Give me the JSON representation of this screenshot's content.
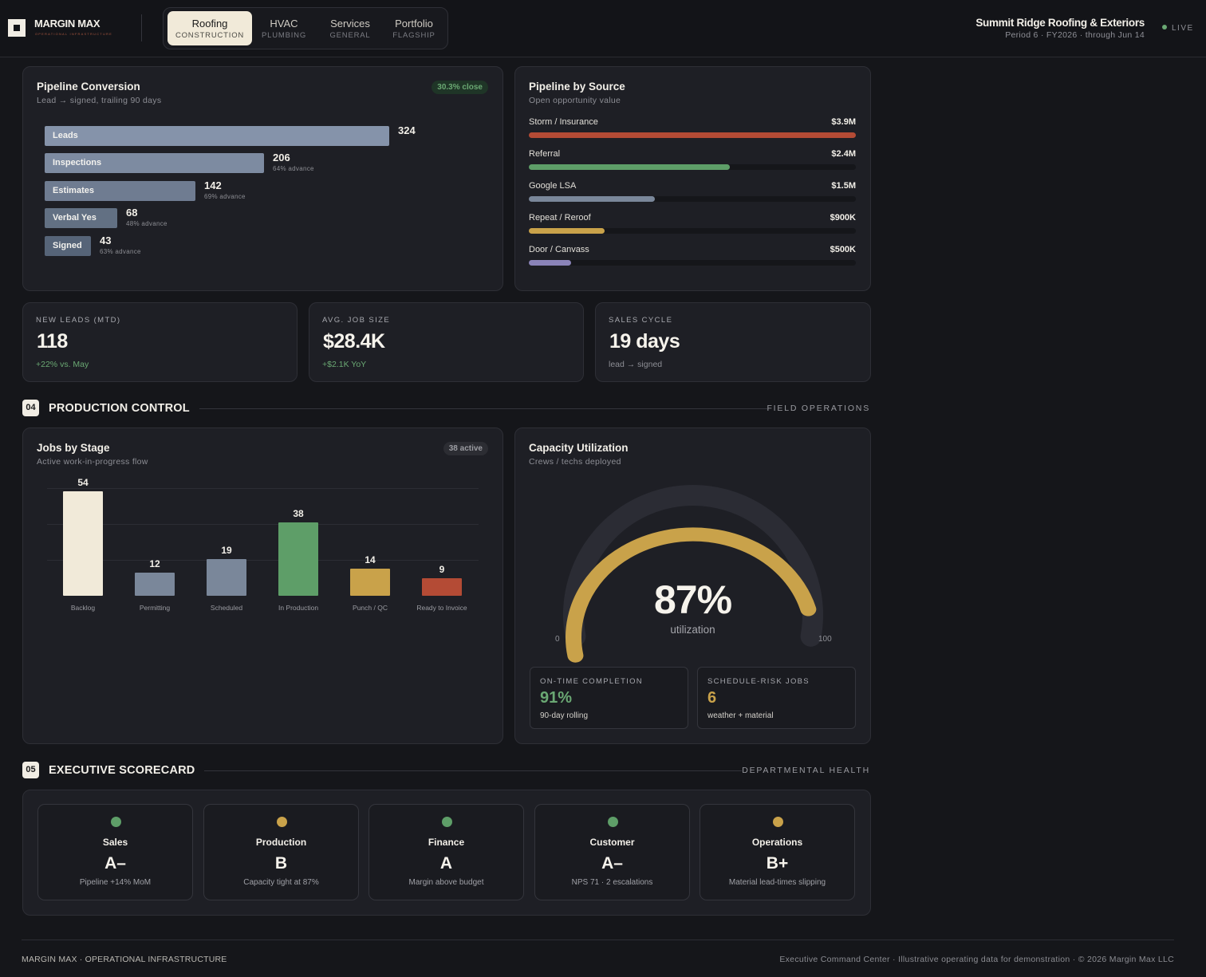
{
  "brand": {
    "name": "MARGIN MAX",
    "tagline": "OPERATIONAL INFRASTRUCTURE"
  },
  "tabs": [
    {
      "label": "Roofing",
      "sub": "CONSTRUCTION",
      "active": true
    },
    {
      "label": "HVAC",
      "sub": "PLUMBING",
      "active": false
    },
    {
      "label": "Services",
      "sub": "GENERAL",
      "active": false
    },
    {
      "label": "Portfolio",
      "sub": "FLAGSHIP",
      "active": false
    }
  ],
  "company": {
    "name": "Summit Ridge Roofing & Exteriors",
    "period": "Period 6 · FY2026 · through Jun 14"
  },
  "live_label": "LIVE",
  "pipeline_conversion": {
    "title": "Pipeline Conversion",
    "subtitle": "Lead → signed, trailing 90 days",
    "badge": "30.3% close",
    "stages": [
      {
        "label": "Leads",
        "value": "324",
        "advance": "",
        "count": 324
      },
      {
        "label": "Inspections",
        "value": "206",
        "advance": "64% advance",
        "count": 206
      },
      {
        "label": "Estimates",
        "value": "142",
        "advance": "69% advance",
        "count": 142
      },
      {
        "label": "Verbal Yes",
        "value": "68",
        "advance": "48% advance",
        "count": 68
      },
      {
        "label": "Signed",
        "value": "43",
        "advance": "63% advance",
        "count": 43
      }
    ]
  },
  "pipeline_source": {
    "title": "Pipeline by Source",
    "subtitle": "Open opportunity value",
    "sources": [
      {
        "label": "Storm / Insurance",
        "value": "$3.9M",
        "amount": 3.9,
        "color": "#b44b35"
      },
      {
        "label": "Referral",
        "value": "$2.4M",
        "amount": 2.4,
        "color": "#5e9e68"
      },
      {
        "label": "Google LSA",
        "value": "$1.5M",
        "amount": 1.5,
        "color": "#7a879a"
      },
      {
        "label": "Repeat / Reroof",
        "value": "$900K",
        "amount": 0.9,
        "color": "#c9a24a"
      },
      {
        "label": "Door / Canvass",
        "value": "$500K",
        "amount": 0.5,
        "color": "#8a83b8"
      }
    ]
  },
  "kpis": [
    {
      "label": "NEW LEADS (MTD)",
      "value": "118",
      "note": "+22% vs. May",
      "positive": true
    },
    {
      "label": "AVG. JOB SIZE",
      "value": "$28.4K",
      "note": "+$2.1K YoY",
      "positive": true
    },
    {
      "label": "SALES CYCLE",
      "value": "19 days",
      "note": "lead → signed",
      "positive": false
    }
  ],
  "section_production": {
    "num": "04",
    "title": "PRODUCTION CONTROL",
    "right": "FIELD OPERATIONS"
  },
  "jobs_by_stage": {
    "title": "Jobs by Stage",
    "subtitle": "Active work-in-progress flow",
    "badge": "38 active"
  },
  "chart_data": {
    "type": "bar",
    "categories": [
      "Backlog",
      "Permitting",
      "Scheduled",
      "In Production",
      "Punch / QC",
      "Ready to Invoice"
    ],
    "values": [
      54,
      12,
      19,
      38,
      14,
      9
    ],
    "value_labels": [
      "54",
      "12",
      "19",
      "38",
      "14",
      "9"
    ],
    "colors": [
      "#f1ead9",
      "#7a879a",
      "#7a879a",
      "#5e9e68",
      "#c9a24a",
      "#b44b35"
    ],
    "ylim": [
      0,
      60
    ],
    "grid": true
  },
  "capacity": {
    "title": "Capacity Utilization",
    "subtitle": "Crews / techs deployed",
    "value": 87,
    "display": "87%",
    "label": "utilization",
    "min_label": "0",
    "max_label": "100",
    "accent": "#c9a24a",
    "metrics": [
      {
        "label": "ON-TIME COMPLETION",
        "value": "91%",
        "note": "90-day rolling",
        "color": "#6aa873"
      },
      {
        "label": "SCHEDULE-RISK JOBS",
        "value": "6",
        "note": "weather + material",
        "color": "#c9a24a"
      }
    ]
  },
  "section_scorecard": {
    "num": "05",
    "title": "EXECUTIVE SCORECARD",
    "right": "DEPARTMENTAL HEALTH"
  },
  "scorecard": [
    {
      "name": "Sales",
      "grade": "A–",
      "note": "Pipeline +14% MoM",
      "status_color": "#5e9e68"
    },
    {
      "name": "Production",
      "grade": "B",
      "note": "Capacity tight at 87%",
      "status_color": "#c9a24a"
    },
    {
      "name": "Finance",
      "grade": "A",
      "note": "Margin above budget",
      "status_color": "#5e9e68"
    },
    {
      "name": "Customer",
      "grade": "A–",
      "note": "NPS 71 · 2 escalations",
      "status_color": "#5e9e68"
    },
    {
      "name": "Operations",
      "grade": "B+",
      "note": "Material lead-times slipping",
      "status_color": "#c9a24a"
    }
  ],
  "footer": {
    "left": "MARGIN MAX · OPERATIONAL INFRASTRUCTURE",
    "right": "Executive Command Center · Illustrative operating data for demonstration · © 2026 Margin Max LLC"
  }
}
